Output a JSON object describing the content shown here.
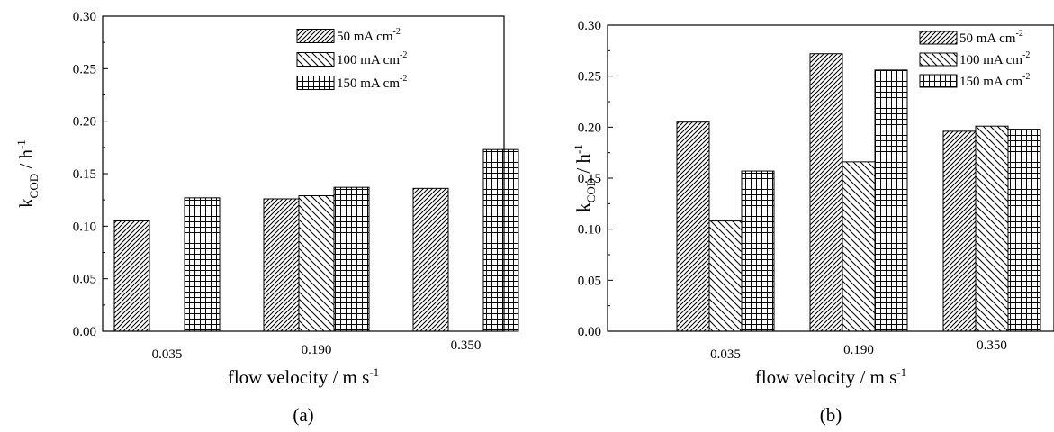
{
  "chart_data": [
    {
      "type": "bar",
      "panel_label": "(a)",
      "categories": [
        "0.035",
        "0.190",
        "0.350"
      ],
      "xlabel": "flow velocity / m s",
      "xlabel_sup": "-1",
      "ylabel": "k",
      "ylabel_sub": "COD",
      "ylabel_unit": " / h",
      "ylabel_sup": "-1",
      "ylim": [
        0,
        0.3
      ],
      "yticks": [
        "0.00",
        "0.05",
        "0.10",
        "0.15",
        "0.20",
        "0.25",
        "0.30"
      ],
      "grid": false,
      "legend_position": "top-right",
      "series": [
        {
          "name": "50 mA cm",
          "name_sup": "-2",
          "pattern": "diagonal-up",
          "values": [
            0.105,
            0.126,
            0.136
          ]
        },
        {
          "name": "100 mA cm",
          "name_sup": "-2",
          "pattern": "diagonal-down",
          "values": [
            null,
            0.129,
            null
          ]
        },
        {
          "name": "150 mA cm",
          "name_sup": "-2",
          "pattern": "grid",
          "values": [
            0.127,
            0.137,
            0.173
          ]
        }
      ]
    },
    {
      "type": "bar",
      "panel_label": "(b)",
      "categories": [
        "0.035",
        "0.190",
        "0.350"
      ],
      "xlabel": "flow velocity / m s",
      "xlabel_sup": "-1",
      "ylabel": "k",
      "ylabel_sub": "COD",
      "ylabel_unit": " / h",
      "ylabel_sup": "-1",
      "ylim": [
        0,
        0.3
      ],
      "yticks": [
        "0.00",
        "0.05",
        "0.10",
        "0.15",
        "0.20",
        "0.25",
        "0.30"
      ],
      "grid": false,
      "legend_position": "top-right",
      "series": [
        {
          "name": "50 mA cm",
          "name_sup": "-2",
          "pattern": "diagonal-up",
          "values": [
            0.205,
            0.272,
            0.196
          ]
        },
        {
          "name": "100 mA cm",
          "name_sup": "-2",
          "pattern": "diagonal-down",
          "values": [
            0.108,
            0.166,
            0.201
          ]
        },
        {
          "name": "150 mA cm",
          "name_sup": "-2",
          "pattern": "grid",
          "values": [
            0.157,
            0.256,
            0.198
          ]
        }
      ]
    }
  ]
}
